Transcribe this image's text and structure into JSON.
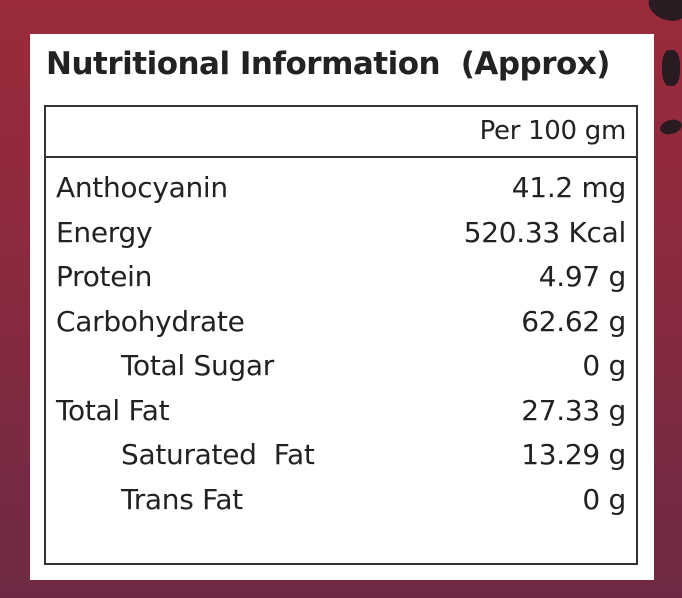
{
  "title": "Nutritional Information  (Approx)",
  "column_header": "Per 100 gm",
  "rows": [
    {
      "nutrient": "Anthocyanin",
      "amount": "41.2 mg"
    },
    {
      "nutrient": "Energy",
      "amount": "520.33 Kcal"
    },
    {
      "nutrient": "Protein",
      "amount": "4.97 g"
    },
    {
      "nutrient": "Carbohydrate",
      "amount": "62.62 g"
    },
    {
      "nutrient": "Total Sugar",
      "amount": "0 g"
    },
    {
      "nutrient": "Total Fat",
      "amount": "27.33 g"
    },
    {
      "nutrient": "Saturated  Fat",
      "amount": "13.29 g"
    },
    {
      "nutrient": "Trans Fat",
      "amount": "0 g"
    }
  ]
}
